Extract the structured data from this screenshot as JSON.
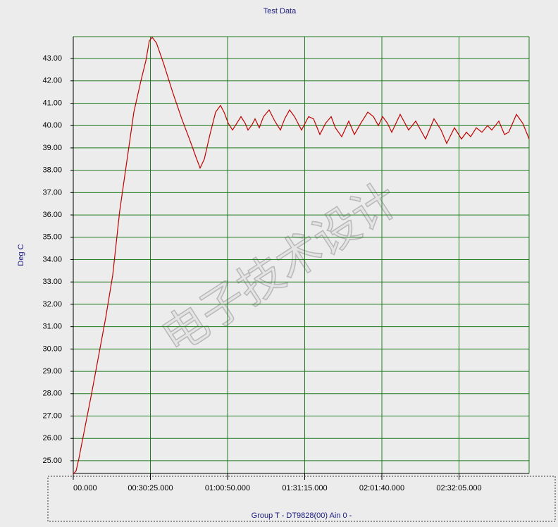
{
  "chart_data": {
    "type": "line",
    "title": "Test Data",
    "ylabel": "Deg C",
    "xlabel": "Group T - DT9828(00) Ain 0 -",
    "watermark": "电子技术设计",
    "grid": true,
    "grid_color": "#1e7a1e",
    "ylim": [
      24.43,
      43.98
    ],
    "yticks": [
      {
        "value": 25,
        "label": "25.00"
      },
      {
        "value": 26,
        "label": "26.00"
      },
      {
        "value": 27,
        "label": "27.00"
      },
      {
        "value": 28,
        "label": "28.00"
      },
      {
        "value": 29,
        "label": "29.00"
      },
      {
        "value": 30,
        "label": "30.00"
      },
      {
        "value": 31,
        "label": "31.00"
      },
      {
        "value": 32,
        "label": "32.00"
      },
      {
        "value": 33,
        "label": "33.00"
      },
      {
        "value": 34,
        "label": "34.00"
      },
      {
        "value": 35,
        "label": "35.00"
      },
      {
        "value": 36,
        "label": "36.00"
      },
      {
        "value": 37,
        "label": "37.00"
      },
      {
        "value": 38,
        "label": "38.00"
      },
      {
        "value": 39,
        "label": "39.00"
      },
      {
        "value": 40,
        "label": "40.00"
      },
      {
        "value": 41,
        "label": "41.00"
      },
      {
        "value": 42,
        "label": "42.00"
      },
      {
        "value": 43,
        "label": "43.00"
      }
    ],
    "xlim": [
      0,
      10783
    ],
    "xticks": [
      {
        "value": 0,
        "label": "00.000"
      },
      {
        "value": 1825,
        "label": "00:30:25.000"
      },
      {
        "value": 3650,
        "label": "01:00:50.000"
      },
      {
        "value": 5475,
        "label": "01:31:15.000"
      },
      {
        "value": 7300,
        "label": "02:01:40.000"
      },
      {
        "value": 9125,
        "label": "02:32:05.000"
      }
    ],
    "x": [
      0,
      67,
      133,
      267,
      433,
      600,
      767,
      933,
      1100,
      1267,
      1433,
      1600,
      1717,
      1800,
      1867,
      1967,
      2133,
      2350,
      2567,
      2767,
      2900,
      3000,
      3100,
      3233,
      3367,
      3483,
      3567,
      3667,
      3767,
      3867,
      3967,
      4067,
      4133,
      4217,
      4300,
      4400,
      4500,
      4633,
      4767,
      4900,
      5000,
      5117,
      5233,
      5400,
      5567,
      5683,
      5833,
      5967,
      6100,
      6200,
      6350,
      6517,
      6650,
      6800,
      6967,
      7100,
      7217,
      7317,
      7433,
      7533,
      7733,
      7933,
      8100,
      8333,
      8533,
      8700,
      8833,
      9017,
      9183,
      9300,
      9400,
      9533,
      9667,
      9800,
      9900,
      10067,
      10200,
      10300,
      10483,
      10633,
      10783
    ],
    "series": [
      {
        "color": "#c00000",
        "values": [
          24.4,
          24.55,
          25.1,
          26.4,
          28.0,
          29.7,
          31.4,
          33.3,
          36.2,
          38.4,
          40.6,
          42.0,
          42.9,
          43.8,
          43.95,
          43.7,
          42.8,
          41.5,
          40.3,
          39.3,
          38.6,
          38.1,
          38.5,
          39.6,
          40.6,
          40.9,
          40.6,
          40.1,
          39.8,
          40.1,
          40.4,
          40.1,
          39.8,
          40.0,
          40.3,
          39.9,
          40.4,
          40.7,
          40.2,
          39.8,
          40.3,
          40.7,
          40.4,
          39.8,
          40.4,
          40.3,
          39.6,
          40.1,
          40.4,
          39.9,
          39.5,
          40.2,
          39.6,
          40.1,
          40.6,
          40.4,
          40.0,
          40.4,
          40.1,
          39.7,
          40.5,
          39.8,
          40.2,
          39.4,
          40.3,
          39.8,
          39.2,
          39.9,
          39.4,
          39.7,
          39.5,
          39.9,
          39.7,
          40.0,
          39.8,
          40.2,
          39.6,
          39.7,
          40.5,
          40.1,
          39.4
        ]
      }
    ]
  }
}
